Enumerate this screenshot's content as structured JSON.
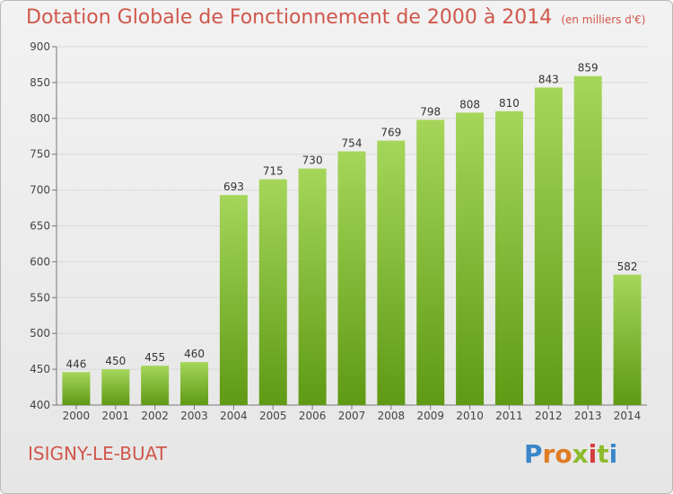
{
  "header": {
    "title": "Dotation Globale de Fonctionnement de 2000 à 2014",
    "unit": "(en milliers d'€)"
  },
  "footer": {
    "commune": "ISIGNY-LE-BUAT",
    "brand_letters": [
      {
        "ch": "P",
        "color": "#3a86c8"
      },
      {
        "ch": "r",
        "color": "#e07b22"
      },
      {
        "ch": "o",
        "color": "#e07b22"
      },
      {
        "ch": "x",
        "color": "#8dbb2b"
      },
      {
        "ch": "i",
        "color": "#d63c3c"
      },
      {
        "ch": "t",
        "color": "#8dbb2b"
      },
      {
        "ch": "i",
        "color": "#3a86c8"
      }
    ]
  },
  "colors": {
    "bar_top": "#a5d65a",
    "bar_bottom": "#5f9a14",
    "accent": "#d0574b",
    "grid": "#d9d9d9",
    "axis": "#777777"
  },
  "chart_data": {
    "type": "bar",
    "categories": [
      "2000",
      "2001",
      "2002",
      "2003",
      "2004",
      "2005",
      "2006",
      "2007",
      "2008",
      "2009",
      "2010",
      "2011",
      "2012",
      "2013",
      "2014"
    ],
    "values": [
      446,
      450,
      455,
      460,
      693,
      715,
      730,
      754,
      769,
      798,
      808,
      810,
      843,
      859,
      582
    ],
    "data_labels": [
      "446",
      "450",
      "455",
      "460",
      "693",
      "715",
      "730",
      "754",
      "769",
      "798",
      "808",
      "810",
      "843",
      "859",
      "582"
    ],
    "ylim": [
      400,
      900
    ],
    "yticks": [
      400,
      450,
      500,
      550,
      600,
      650,
      700,
      750,
      800,
      850,
      900
    ],
    "grid": true
  }
}
